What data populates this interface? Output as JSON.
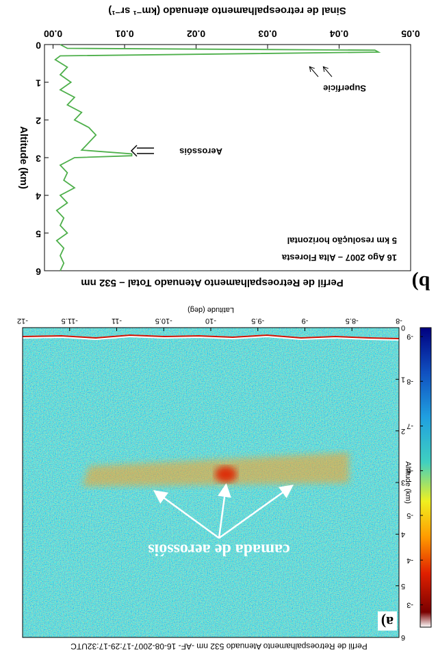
{
  "chart_data": [
    {
      "type": "heatmap",
      "title": "Perfil de Retroespalhamento Atenuado 532 nm -AF- 16-08-2007-17:29-17:32UTC",
      "panel_label": "a)",
      "xlabel": "Latitude (deg)",
      "ylabel": "Altitude (km)",
      "xlim": [
        -8,
        -12
      ],
      "xticks": [
        -12,
        -11.5,
        -11,
        -10.5,
        -10,
        -9.5,
        -9,
        -8.5,
        -8
      ],
      "ylim": [
        0,
        6
      ],
      "yticks": [
        0,
        1,
        2,
        3,
        4,
        5,
        6
      ],
      "clim": [
        -9.2,
        -2.5
      ],
      "cticks": [
        -9,
        -8,
        -7,
        -6,
        -5,
        -4,
        -3
      ],
      "annotation": "camada de aerossóis"
    },
    {
      "type": "profile",
      "title": "Perfil de Retroespalhamento Atenuado Total – 532 nm",
      "panel_label": "b)",
      "xlabel": "Sinal de retroespalhamento atenuado (km⁻¹ sr⁻¹)",
      "ylabel": "Altitude (km)",
      "notes": [
        "16 Ago 2007 – Alta Floresta",
        "5 km resolução horizontal"
      ],
      "annotations": [
        "Aerossóis",
        "Superfície"
      ],
      "xlim": [
        -0.0012,
        0.05
      ],
      "xticks": [
        {
          "value": 0,
          "label": "0.00"
        },
        0.01,
        0.02,
        0.03,
        0.04,
        0.05
      ],
      "ylim": [
        0,
        6
      ],
      "yticks": [
        0,
        1,
        2,
        3,
        4,
        5,
        6
      ],
      "color": "#4daf4a",
      "altitude": [
        0,
        0.1,
        0.15,
        0.2,
        0.25,
        0.3,
        0.4,
        0.6,
        0.8,
        1.0,
        1.2,
        1.4,
        1.6,
        1.8,
        2.0,
        2.2,
        2.4,
        2.6,
        2.8,
        2.9,
        2.95,
        3.0,
        3.2,
        3.4,
        3.6,
        3.8,
        4.0,
        4.2,
        4.4,
        4.6,
        4.8,
        5.0,
        5.2,
        5.4,
        5.6,
        5.8,
        6.0
      ],
      "values": [
        0.001,
        0.002,
        0.045,
        0.0455,
        0.024,
        0.001,
        0.0003,
        0.002,
        0.001,
        0.0025,
        0.001,
        0.003,
        0.002,
        0.004,
        0.003,
        0.005,
        0.006,
        0.005,
        0.004,
        0.011,
        0.011,
        0.003,
        0.001,
        0.002,
        0.0015,
        0.003,
        0.001,
        0.002,
        0.0005,
        0.0015,
        0.001,
        0.002,
        0.0005,
        0.0015,
        0.001,
        0.0015,
        0.001
      ]
    }
  ]
}
